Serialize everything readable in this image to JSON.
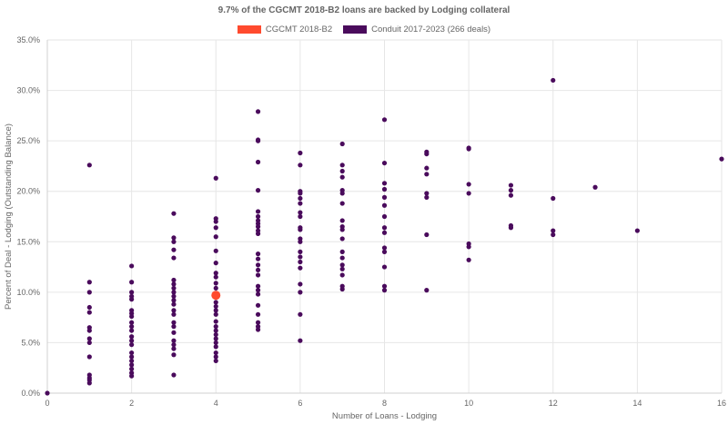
{
  "chart_data": {
    "type": "scatter",
    "title": "9.7% of the CGCMT 2018-B2 loans are backed by Lodging collateral",
    "xlabel": "Number of Loans - Lodging",
    "ylabel": "Percent of Deal - Lodging (Outstanding Balance)",
    "xlim": [
      0,
      16
    ],
    "ylim": [
      0,
      35
    ],
    "x_ticks": [
      0,
      2,
      4,
      6,
      8,
      10,
      12,
      14,
      16
    ],
    "x_tick_labels": [
      "0",
      "2",
      "4",
      "6",
      "8",
      "10",
      "12",
      "14",
      "16"
    ],
    "y_ticks": [
      0,
      5,
      10,
      15,
      20,
      25,
      30,
      35
    ],
    "y_tick_labels": [
      "0.0%",
      "5.0%",
      "10.0%",
      "15.0%",
      "20.0%",
      "25.0%",
      "30.0%",
      "35.0%"
    ],
    "grid": true,
    "legend_position": "top-center",
    "series": [
      {
        "name": "CGCMT 2018-B2",
        "color": "#ff4a2e",
        "points": [
          [
            4,
            9.7
          ]
        ]
      },
      {
        "name": "Conduit 2017-2023 (266 deals)",
        "color": "#4a0b5c",
        "points": [
          [
            0,
            0.0
          ],
          [
            1,
            22.6
          ],
          [
            1,
            11.0
          ],
          [
            1,
            10.0
          ],
          [
            1,
            8.5
          ],
          [
            1,
            8.0
          ],
          [
            1,
            6.5
          ],
          [
            1,
            6.2
          ],
          [
            1,
            5.4
          ],
          [
            1,
            5.0
          ],
          [
            1,
            3.6
          ],
          [
            1,
            1.8
          ],
          [
            1,
            1.5
          ],
          [
            1,
            1.3
          ],
          [
            1,
            1.0
          ],
          [
            2,
            12.6
          ],
          [
            2,
            11.0
          ],
          [
            2,
            10.0
          ],
          [
            2,
            9.6
          ],
          [
            2,
            9.3
          ],
          [
            2,
            8.2
          ],
          [
            2,
            7.9
          ],
          [
            2,
            7.6
          ],
          [
            2,
            7.0
          ],
          [
            2,
            6.6
          ],
          [
            2,
            6.2
          ],
          [
            2,
            5.6
          ],
          [
            2,
            5.2
          ],
          [
            2,
            4.8
          ],
          [
            2,
            4.0
          ],
          [
            2,
            3.6
          ],
          [
            2,
            3.2
          ],
          [
            2,
            2.8
          ],
          [
            2,
            2.4
          ],
          [
            2,
            2.0
          ],
          [
            2,
            1.7
          ],
          [
            3,
            17.8
          ],
          [
            3,
            15.4
          ],
          [
            3,
            15.0
          ],
          [
            3,
            14.2
          ],
          [
            3,
            13.4
          ],
          [
            3,
            11.2
          ],
          [
            3,
            10.8
          ],
          [
            3,
            10.4
          ],
          [
            3,
            10.0
          ],
          [
            3,
            9.6
          ],
          [
            3,
            9.2
          ],
          [
            3,
            8.8
          ],
          [
            3,
            8.2
          ],
          [
            3,
            7.8
          ],
          [
            3,
            7.0
          ],
          [
            3,
            6.6
          ],
          [
            3,
            6.0
          ],
          [
            3,
            5.2
          ],
          [
            3,
            4.8
          ],
          [
            3,
            4.4
          ],
          [
            3,
            3.8
          ],
          [
            3,
            1.8
          ],
          [
            4,
            21.3
          ],
          [
            4,
            17.3
          ],
          [
            4,
            17.0
          ],
          [
            4,
            16.4
          ],
          [
            4,
            15.5
          ],
          [
            4,
            14.1
          ],
          [
            4,
            12.9
          ],
          [
            4,
            11.9
          ],
          [
            4,
            11.5
          ],
          [
            4,
            10.9
          ],
          [
            4,
            10.4
          ],
          [
            4,
            9.9
          ],
          [
            4,
            9.0
          ],
          [
            4,
            8.6
          ],
          [
            4,
            8.2
          ],
          [
            4,
            7.8
          ],
          [
            4,
            7.1
          ],
          [
            4,
            6.6
          ],
          [
            4,
            6.2
          ],
          [
            4,
            5.8
          ],
          [
            4,
            5.4
          ],
          [
            4,
            5.0
          ],
          [
            4,
            4.6
          ],
          [
            4,
            4.0
          ],
          [
            4,
            3.6
          ],
          [
            4,
            3.2
          ],
          [
            5,
            27.9
          ],
          [
            5,
            25.1
          ],
          [
            5,
            25.0
          ],
          [
            5,
            22.9
          ],
          [
            5,
            20.1
          ],
          [
            5,
            18.0
          ],
          [
            5,
            17.5
          ],
          [
            5,
            17.1
          ],
          [
            5,
            16.8
          ],
          [
            5,
            16.5
          ],
          [
            5,
            16.1
          ],
          [
            5,
            15.8
          ],
          [
            5,
            13.8
          ],
          [
            5,
            13.3
          ],
          [
            5,
            12.7
          ],
          [
            5,
            12.2
          ],
          [
            5,
            11.7
          ],
          [
            5,
            10.6
          ],
          [
            5,
            10.2
          ],
          [
            5,
            9.8
          ],
          [
            5,
            8.7
          ],
          [
            5,
            7.8
          ],
          [
            5,
            7.0
          ],
          [
            5,
            6.6
          ],
          [
            5,
            6.3
          ],
          [
            6,
            23.8
          ],
          [
            6,
            22.6
          ],
          [
            6,
            20.0
          ],
          [
            6,
            19.8
          ],
          [
            6,
            19.3
          ],
          [
            6,
            18.8
          ],
          [
            6,
            17.9
          ],
          [
            6,
            17.5
          ],
          [
            6,
            16.4
          ],
          [
            6,
            16.2
          ],
          [
            6,
            15.3
          ],
          [
            6,
            15.0
          ],
          [
            6,
            14.0
          ],
          [
            6,
            13.5
          ],
          [
            6,
            13.0
          ],
          [
            6,
            12.4
          ],
          [
            6,
            10.8
          ],
          [
            6,
            10.0
          ],
          [
            6,
            7.8
          ],
          [
            6,
            5.2
          ],
          [
            7,
            24.7
          ],
          [
            7,
            22.6
          ],
          [
            7,
            22.0
          ],
          [
            7,
            21.4
          ],
          [
            7,
            20.1
          ],
          [
            7,
            19.8
          ],
          [
            7,
            18.8
          ],
          [
            7,
            17.1
          ],
          [
            7,
            16.5
          ],
          [
            7,
            16.2
          ],
          [
            7,
            15.3
          ],
          [
            7,
            14.0
          ],
          [
            7,
            13.4
          ],
          [
            7,
            12.7
          ],
          [
            7,
            12.3
          ],
          [
            7,
            11.7
          ],
          [
            7,
            10.6
          ],
          [
            7,
            10.3
          ],
          [
            8,
            27.1
          ],
          [
            8,
            22.8
          ],
          [
            8,
            20.8
          ],
          [
            8,
            20.2
          ],
          [
            8,
            19.4
          ],
          [
            8,
            18.6
          ],
          [
            8,
            17.5
          ],
          [
            8,
            16.4
          ],
          [
            8,
            15.9
          ],
          [
            8,
            14.4
          ],
          [
            8,
            14.0
          ],
          [
            8,
            12.5
          ],
          [
            8,
            10.6
          ],
          [
            8,
            10.2
          ],
          [
            9,
            23.9
          ],
          [
            9,
            23.7
          ],
          [
            9,
            22.3
          ],
          [
            9,
            21.7
          ],
          [
            9,
            19.8
          ],
          [
            9,
            19.4
          ],
          [
            9,
            15.7
          ],
          [
            9,
            10.2
          ],
          [
            10,
            24.3
          ],
          [
            10,
            24.2
          ],
          [
            10,
            20.7
          ],
          [
            10,
            19.8
          ],
          [
            10,
            14.8
          ],
          [
            10,
            14.5
          ],
          [
            10,
            13.2
          ],
          [
            11,
            20.6
          ],
          [
            11,
            20.1
          ],
          [
            11,
            19.6
          ],
          [
            11,
            16.6
          ],
          [
            11,
            16.4
          ],
          [
            12,
            31.0
          ],
          [
            12,
            19.3
          ],
          [
            12,
            16.1
          ],
          [
            12,
            15.7
          ],
          [
            13,
            20.4
          ],
          [
            14,
            16.1
          ],
          [
            16,
            23.2
          ]
        ]
      }
    ]
  }
}
